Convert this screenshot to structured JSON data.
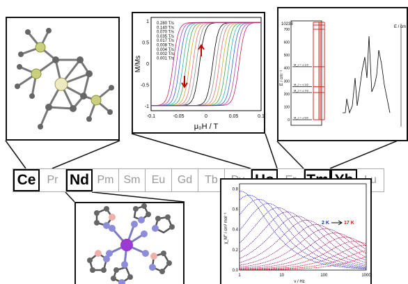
{
  "elements": [
    {
      "symbol": "Ce",
      "highlighted": true
    },
    {
      "symbol": "Pr",
      "highlighted": false
    },
    {
      "symbol": "Nd",
      "highlighted": true
    },
    {
      "symbol": "Pm",
      "highlighted": false
    },
    {
      "symbol": "Sm",
      "highlighted": false
    },
    {
      "symbol": "Eu",
      "highlighted": false
    },
    {
      "symbol": "Gd",
      "highlighted": false
    },
    {
      "symbol": "Tb",
      "highlighted": false
    },
    {
      "symbol": "Dy",
      "highlighted": false
    },
    {
      "symbol": "Ho",
      "highlighted": true
    },
    {
      "symbol": "Er",
      "highlighted": false
    },
    {
      "symbol": "Tm",
      "highlighted": true
    },
    {
      "symbol": "Yb",
      "highlighted": true
    },
    {
      "symbol": "Lu",
      "highlighted": false
    }
  ],
  "hysteresis": {
    "ylabel": "M/Ms",
    "xlabel": "μ₀H / T",
    "x_ticks": [
      "-0.1",
      "-0.05",
      "0",
      "0.05",
      "0.1"
    ],
    "y_ticks": [
      "1",
      "0.5",
      "0",
      "-0.5",
      "-1"
    ],
    "sweep_rates": [
      "0.280 T/s",
      "0.140 T/s",
      "0.070 T/s",
      "0.035 T/s",
      "0.017 T/s",
      "0.008 T/s",
      "0.004 T/s",
      "0.002 T/s",
      "0.001 T/s"
    ],
    "xlim": [
      -0.1,
      0.1
    ],
    "ylim": [
      -1.1,
      1.1
    ],
    "colors": [
      "#000000",
      "#888888",
      "#e07070",
      "#d0a030",
      "#40a040",
      "#30b0b0",
      "#3060d0",
      "#a040c0",
      "#c02060"
    ]
  },
  "energy_levels": {
    "ylabel": "E / cm⁻¹",
    "right_label": "E / cm",
    "top_value": "10238",
    "y_ticks": [
      "700",
      "600",
      "500",
      "400",
      "300",
      "200",
      "100",
      "0"
    ],
    "levels": [
      {
        "label": "M_J = ± 5/2",
        "energy": 0
      },
      {
        "label": "M_J = ± 7/2",
        "energy": 210
      },
      {
        "label": "M_J = ± 3/2",
        "energy": 255
      },
      {
        "label": "M_J = ± 1/2",
        "energy": 410
      }
    ]
  },
  "ac_susceptibility": {
    "ylabel": "χ_M'' / cm³ mol⁻¹",
    "xlabel": "ν / Hz",
    "legend_start": "2 K",
    "legend_end": "17 K",
    "legend_start_color": "#1a2ad8",
    "legend_end_color": "#e01010",
    "x_ticks": [
      "1",
      "10",
      "100",
      "1000"
    ],
    "y_ticks": [
      "0.8",
      "0.6",
      "0.4",
      "0.2",
      "0.0"
    ],
    "xlim": [
      1,
      1000
    ],
    "ylim": [
      0,
      0.85
    ]
  }
}
